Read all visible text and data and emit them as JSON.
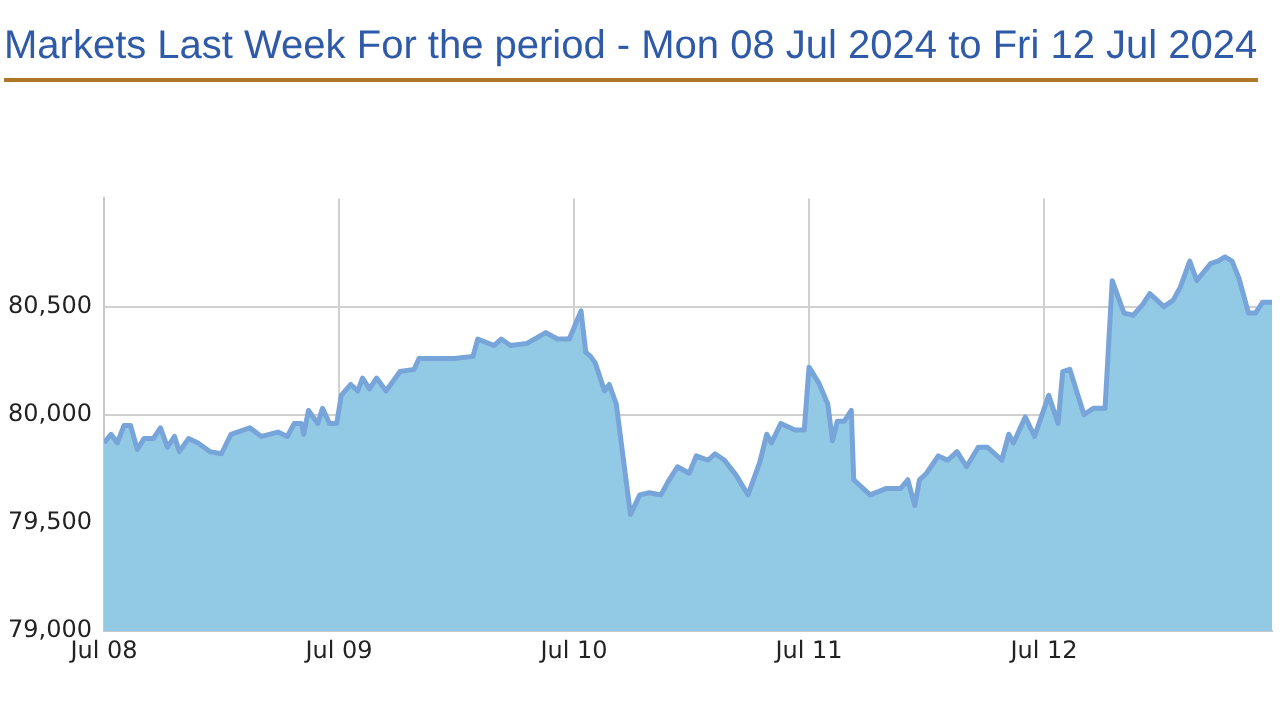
{
  "chart_data": {
    "type": "area",
    "title": "Markets Last Week For the period - Mon 08 Jul 2024 to Fri 12 Jul 2024",
    "xlim": [
      "2024-07-08T00:00",
      "2024-07-12T23:17"
    ],
    "xticks": [
      {
        "value": "2024-07-08",
        "label": "Jul 08"
      },
      {
        "value": "2024-07-09",
        "label": "Jul 09"
      },
      {
        "value": "2024-07-10",
        "label": "Jul 10"
      },
      {
        "value": "2024-07-11",
        "label": "Jul 11"
      },
      {
        "value": "2024-07-12",
        "label": "Jul 12"
      }
    ],
    "ylim": [
      79000,
      81000
    ],
    "yticks": [
      {
        "value": 79000,
        "label": "79,000"
      },
      {
        "value": 79500,
        "label": "79,500"
      },
      {
        "value": 80000,
        "label": "80,000"
      },
      {
        "value": 80500,
        "label": "80,500"
      }
    ],
    "grid": true,
    "legend": false,
    "marker": "none",
    "line_style": "solid",
    "series": [
      {
        "color": "#92c9e4",
        "x": [
          "2024-07-08T00:00",
          "2024-07-08T00:43",
          "2024-07-08T01:22",
          "2024-07-08T02:02",
          "2024-07-08T02:43",
          "2024-07-08T03:24",
          "2024-07-08T04:05",
          "2024-07-08T05:02",
          "2024-07-08T05:46",
          "2024-07-08T06:29",
          "2024-07-08T07:12",
          "2024-07-08T07:41",
          "2024-07-08T08:38",
          "2024-07-08T09:36",
          "2024-07-08T10:48",
          "2024-07-08T12:00",
          "2024-07-08T12:58",
          "2024-07-08T14:53",
          "2024-07-08T16:05",
          "2024-07-08T17:46",
          "2024-07-08T18:43",
          "2024-07-08T19:26",
          "2024-07-08T20:10",
          "2024-07-08T20:24",
          "2024-07-08T20:53",
          "2024-07-08T21:50",
          "2024-07-08T22:19",
          "2024-07-08T23:02",
          "2024-07-08T23:46",
          "2024-07-09T00:14",
          "2024-07-09T01:12",
          "2024-07-09T01:55",
          "2024-07-09T02:24",
          "2024-07-09T03:07",
          "2024-07-09T03:50",
          "2024-07-09T04:48",
          "2024-07-09T06:14",
          "2024-07-09T07:41",
          "2024-07-09T08:10",
          "2024-07-09T09:36",
          "2024-07-09T11:46",
          "2024-07-09T13:41",
          "2024-07-09T14:10",
          "2024-07-09T15:50",
          "2024-07-09T16:34",
          "2024-07-09T17:31",
          "2024-07-09T19:12",
          "2024-07-09T21:07",
          "2024-07-09T22:19",
          "2024-07-09T23:31",
          "2024-07-10T00:43",
          "2024-07-10T01:12",
          "2024-07-10T01:41",
          "2024-07-10T02:10",
          "2024-07-10T03:07",
          "2024-07-10T03:36",
          "2024-07-10T04:19",
          "2024-07-10T05:46",
          "2024-07-10T06:43",
          "2024-07-10T07:41",
          "2024-07-10T08:53",
          "2024-07-10T09:36",
          "2024-07-10T10:34",
          "2024-07-10T11:46",
          "2024-07-10T12:29",
          "2024-07-10T13:41",
          "2024-07-10T14:24",
          "2024-07-10T15:22",
          "2024-07-10T16:34",
          "2024-07-10T17:46",
          "2024-07-10T18:58",
          "2024-07-10T19:41",
          "2024-07-10T20:10",
          "2024-07-10T21:07",
          "2024-07-10T22:34",
          "2024-07-10T23:31",
          "2024-07-11T00:00",
          "2024-07-11T00:58",
          "2024-07-11T01:55",
          "2024-07-11T02:24",
          "2024-07-11T02:53",
          "2024-07-11T03:36",
          "2024-07-11T04:19",
          "2024-07-11T04:34",
          "2024-07-11T06:14",
          "2024-07-11T07:55",
          "2024-07-11T09:22",
          "2024-07-11T10:05",
          "2024-07-11T10:48",
          "2024-07-11T11:17",
          "2024-07-11T12:00",
          "2024-07-11T13:12",
          "2024-07-11T14:10",
          "2024-07-11T15:07",
          "2024-07-11T16:05",
          "2024-07-11T17:17",
          "2024-07-11T18:14",
          "2024-07-11T19:41",
          "2024-07-11T20:24",
          "2024-07-11T20:53",
          "2024-07-11T22:05",
          "2024-07-11T23:02",
          "2024-07-12T00:29",
          "2024-07-12T01:26",
          "2024-07-12T01:55",
          "2024-07-12T02:38",
          "2024-07-12T04:05",
          "2024-07-12T05:02",
          "2024-07-12T06:14",
          "2024-07-12T06:58",
          "2024-07-12T08:10",
          "2024-07-12T09:07",
          "2024-07-12T10:05",
          "2024-07-12T10:48",
          "2024-07-12T11:17",
          "2024-07-12T12:14",
          "2024-07-12T13:12",
          "2024-07-12T13:55",
          "2024-07-12T14:53",
          "2024-07-12T15:36",
          "2024-07-12T17:02",
          "2024-07-12T17:46",
          "2024-07-12T18:29",
          "2024-07-12T19:12",
          "2024-07-12T19:55",
          "2024-07-12T20:53",
          "2024-07-12T21:36",
          "2024-07-12T22:19",
          "2024-07-12T23:17"
        ],
        "values": [
          79870,
          79910,
          79870,
          79950,
          79950,
          79840,
          79890,
          79890,
          79940,
          79850,
          79900,
          79830,
          79890,
          79870,
          79830,
          79820,
          79910,
          79940,
          79900,
          79920,
          79900,
          79960,
          79960,
          79910,
          80020,
          79960,
          80030,
          79960,
          79960,
          80090,
          80140,
          80110,
          80170,
          80120,
          80170,
          80110,
          80200,
          80210,
          80260,
          80260,
          80260,
          80270,
          80350,
          80320,
          80350,
          80320,
          80330,
          80380,
          80350,
          80350,
          80480,
          80290,
          80270,
          80240,
          80110,
          80140,
          80050,
          79540,
          79630,
          79640,
          79630,
          79690,
          79760,
          79730,
          79810,
          79790,
          79820,
          79790,
          79720,
          79630,
          79780,
          79910,
          79870,
          79960,
          79930,
          79930,
          80220,
          80150,
          80050,
          79880,
          79970,
          79970,
          80020,
          79700,
          79630,
          79660,
          79660,
          79700,
          79580,
          79700,
          79730,
          79810,
          79790,
          79830,
          79760,
          79850,
          79850,
          79790,
          79910,
          79870,
          79990,
          79900,
          80090,
          79960,
          80200,
          80210,
          80000,
          80030,
          80030,
          80620,
          80470,
          80460,
          80510,
          80560,
          80540,
          80500,
          80530,
          80590,
          80710,
          80620,
          80700,
          80710,
          80730,
          80710,
          80630,
          80470,
          80470,
          80520,
          80520
        ]
      }
    ]
  }
}
